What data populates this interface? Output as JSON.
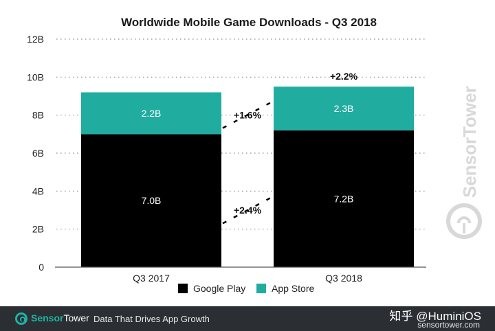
{
  "chart_data": {
    "type": "bar",
    "stacked": true,
    "title": "Worldwide Mobile Game Downloads - Q3 2018",
    "categories": [
      "Q3 2017",
      "Q3 2018"
    ],
    "series": [
      {
        "name": "Google Play",
        "color": "#000000",
        "values": [
          7.0,
          7.2
        ],
        "labels": [
          "7.0B",
          "7.2B"
        ]
      },
      {
        "name": "App Store",
        "color": "#20ada0",
        "values": [
          2.2,
          2.3
        ],
        "labels": [
          "2.2B",
          "2.3B"
        ]
      }
    ],
    "ylim": [
      0,
      12
    ],
    "yticks": [
      {
        "value": 0,
        "label": "0"
      },
      {
        "value": 2,
        "label": "2B"
      },
      {
        "value": 4,
        "label": "4B"
      },
      {
        "value": 6,
        "label": "6B"
      },
      {
        "value": 8,
        "label": "8B"
      },
      {
        "value": 10,
        "label": "10B"
      },
      {
        "value": 12,
        "label": "12B"
      }
    ],
    "grid": true,
    "legend_position": "bottom",
    "annotations": {
      "google_play_growth": "+2.4%",
      "app_store_growth": "+1.6%",
      "total_growth": "+2.2%"
    }
  },
  "watermark": "SensorTower",
  "footer": {
    "brand_part1": "Sensor",
    "brand_part2": "Tower",
    "tagline": "Data That Drives App Growth",
    "website": "sensortower.com",
    "credit": "知乎 @HuminiOS"
  }
}
